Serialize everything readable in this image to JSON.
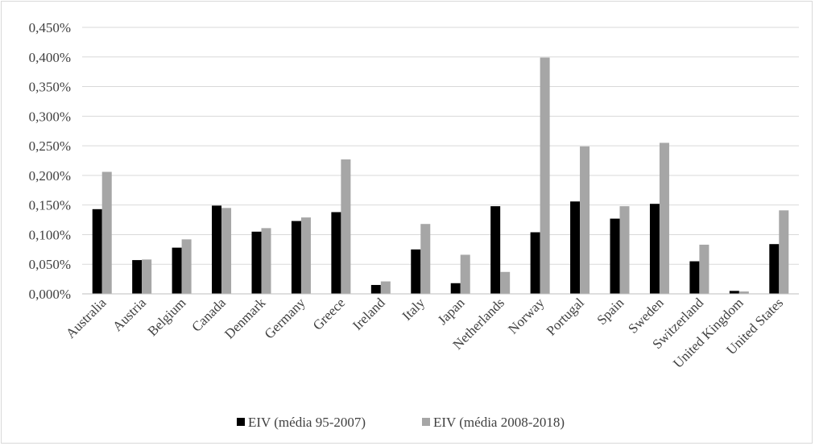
{
  "chart_data": {
    "type": "bar",
    "title": "",
    "xlabel": "",
    "ylabel": "",
    "ylim": [
      0,
      0.45
    ],
    "y_tick_values": [
      0,
      0.05,
      0.1,
      0.15,
      0.2,
      0.25,
      0.3,
      0.35,
      0.4,
      0.45
    ],
    "y_tick_labels": [
      "0,000%",
      "0,050%",
      "0,100%",
      "0,150%",
      "0,200%",
      "0,250%",
      "0,300%",
      "0,350%",
      "0,400%",
      "0,450%"
    ],
    "grid": true,
    "legend_position": "bottom",
    "categories": [
      "Australia",
      "Austria",
      "Belgium",
      "Canada",
      "Denmark",
      "Germany",
      "Greece",
      "Ireland",
      "Italy",
      "Japan",
      "Netherlands",
      "Norway",
      "Portugal",
      "Spain",
      "Sweden",
      "Switzerland",
      "United Kingdom",
      "United States"
    ],
    "series": [
      {
        "name": "EIV (média 95-2007)",
        "color": "#000000",
        "values": [
          0.143,
          0.057,
          0.078,
          0.149,
          0.105,
          0.123,
          0.138,
          0.015,
          0.075,
          0.018,
          0.148,
          0.104,
          0.156,
          0.127,
          0.152,
          0.055,
          0.005,
          0.084
        ]
      },
      {
        "name": "EIV (média 2008-2018)",
        "color": "#a6a6a6",
        "values": [
          0.206,
          0.058,
          0.092,
          0.145,
          0.111,
          0.129,
          0.227,
          0.021,
          0.118,
          0.066,
          0.037,
          0.399,
          0.249,
          0.148,
          0.255,
          0.083,
          0.004,
          0.141
        ]
      }
    ]
  }
}
